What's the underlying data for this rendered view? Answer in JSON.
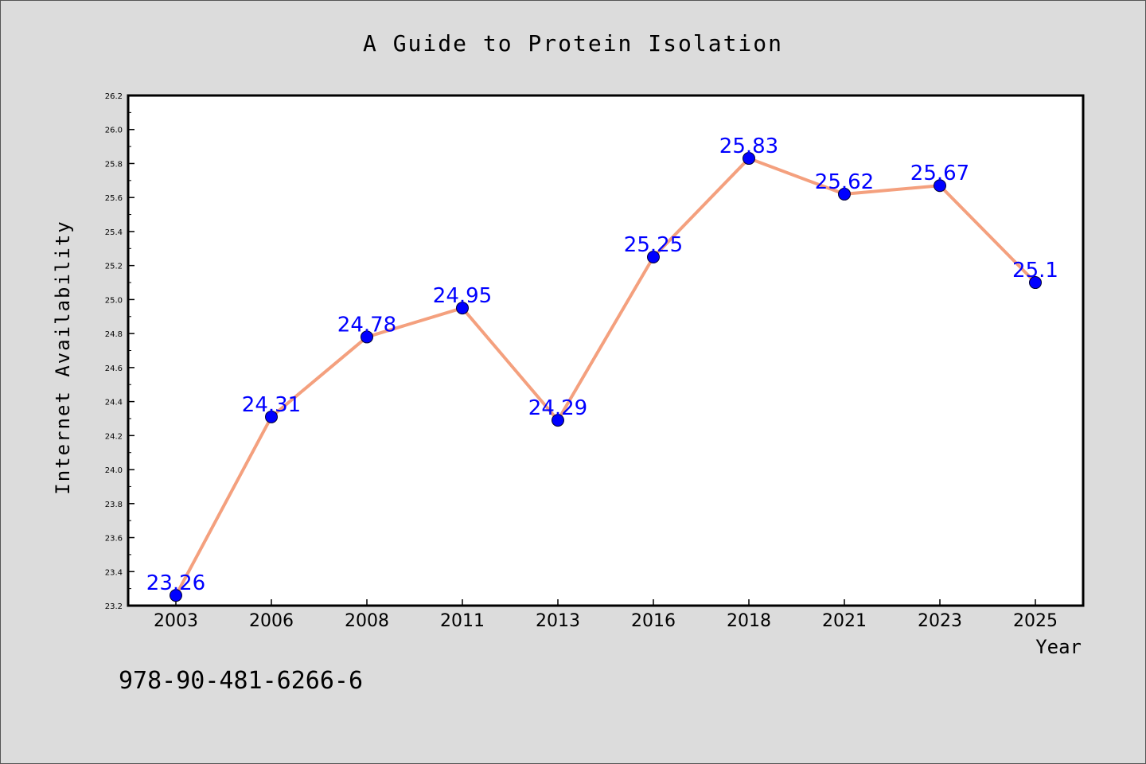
{
  "chart_data": {
    "type": "line",
    "title": "A Guide to Protein Isolation",
    "xlabel": "Year",
    "ylabel": "Internet Availability",
    "categories": [
      "2003",
      "2006",
      "2008",
      "2011",
      "2013",
      "2016",
      "2018",
      "2021",
      "2023",
      "2025"
    ],
    "series": [
      {
        "values": [
          23.26,
          24.31,
          24.78,
          24.95,
          24.29,
          25.25,
          25.83,
          25.62,
          25.67,
          25.1
        ],
        "data_labels": [
          "23.26",
          "24.31",
          "24.78",
          "24.95",
          "24.29",
          "25.25",
          "25.83",
          "25.62",
          "25.67",
          "25.1"
        ]
      }
    ],
    "ylim": [
      23.2,
      26.2
    ],
    "yticks": [
      "23.2",
      "23.4",
      "23.6",
      "23.8",
      "24.0",
      "24.2",
      "24.4",
      "24.6",
      "24.8",
      "25.0",
      "25.2",
      "25.4",
      "25.6",
      "25.8",
      "26.0",
      "26.2"
    ],
    "grid": false,
    "colors": {
      "line": "#f4a07e",
      "marker": "#0000ff",
      "label": "#0000ff",
      "plot_bg": "#ffffff",
      "figure_bg": "#dcdcdc"
    }
  },
  "footer_code": "978-90-481-6266-6"
}
